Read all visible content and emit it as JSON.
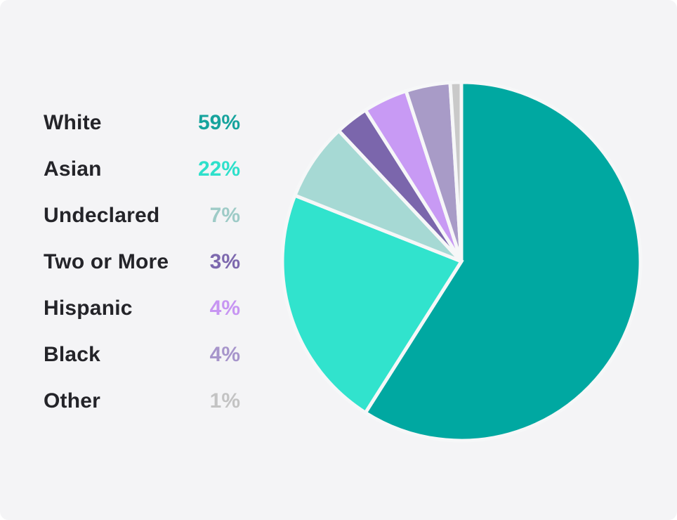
{
  "card": {
    "background": "#F4F4F6"
  },
  "chart_data": {
    "type": "pie",
    "title": "",
    "categories": [
      "White",
      "Asian",
      "Undeclared",
      "Two or More",
      "Hispanic",
      "Black",
      "Other"
    ],
    "values": [
      59,
      22,
      7,
      3,
      4,
      4,
      1
    ],
    "display_values": [
      "59%",
      "22%",
      "7%",
      "3%",
      "4%",
      "4%",
      "1%"
    ],
    "unit": "%",
    "slice_colors": [
      "#00A8A1",
      "#31E3CD",
      "#A6D9D4",
      "#7B66AC",
      "#C89AF4",
      "#A89BC7",
      "#C9C9C9"
    ],
    "value_text_colors": [
      "#16A39D",
      "#2EE0CB",
      "#9ECBC7",
      "#7D68AE",
      "#C795F2",
      "#A795CB",
      "#C3C3C3"
    ],
    "label_text_color": "#242429",
    "slice_gap_color": "#F6F7F8",
    "legend_position": "left",
    "start_angle_deg": 0,
    "direction": "clockwise",
    "grid": false
  }
}
